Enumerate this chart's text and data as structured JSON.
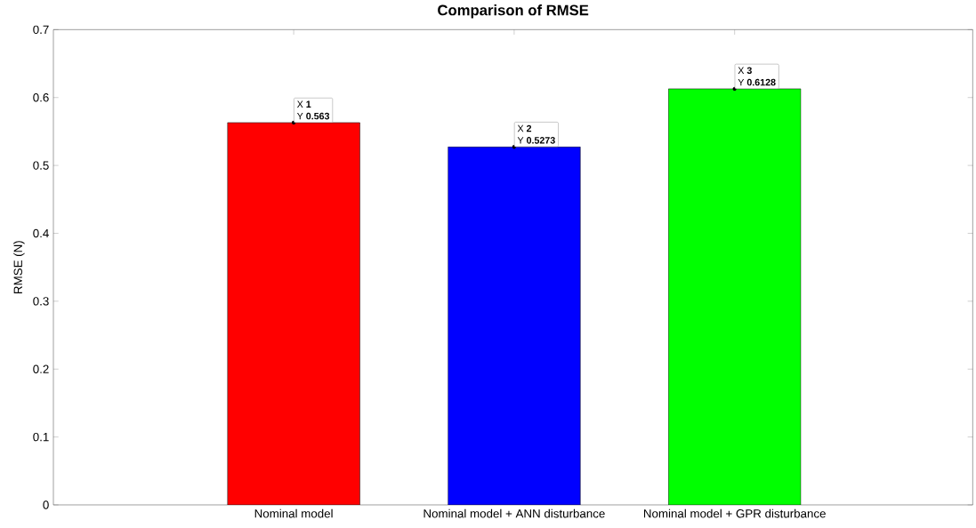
{
  "chart_data": {
    "type": "bar",
    "title": "Comparison of RMSE",
    "ylabel": "RMSE (N)",
    "categories": [
      "Nominal model",
      "Nominal model + ANN disturbance",
      "Nominal model + GPR disturbance"
    ],
    "values": [
      0.563,
      0.5273,
      0.6128
    ],
    "colors": [
      "#ff0000",
      "#0000ff",
      "#00ff00"
    ],
    "ylim": [
      0,
      0.7
    ],
    "yticks": [
      0,
      0.1,
      0.2,
      0.3,
      0.4,
      0.5,
      0.6,
      0.7
    ],
    "annotations": [
      {
        "text": "X **1**",
        "x": "Nominal model",
        "y": 0.563
      },
      {
        "text": "Y **0.563**",
        "x": "Nominal model",
        "y": 0.563
      },
      {
        "text": "X **2**",
        "x": "Nominal model + ANN disturbance",
        "y": 0.5273
      },
      {
        "text": "Y **0.5273**",
        "x": "Nominal model + ANN disturbance",
        "y": 0.5273
      },
      {
        "text": "X **3**",
        "x": "Nominal model + GPR disturbance",
        "y": 0.6128
      },
      {
        "text": "Y **0.6128**",
        "x": "Nominal model + GPR disturbance",
        "y": 0.6128
      }
    ]
  }
}
